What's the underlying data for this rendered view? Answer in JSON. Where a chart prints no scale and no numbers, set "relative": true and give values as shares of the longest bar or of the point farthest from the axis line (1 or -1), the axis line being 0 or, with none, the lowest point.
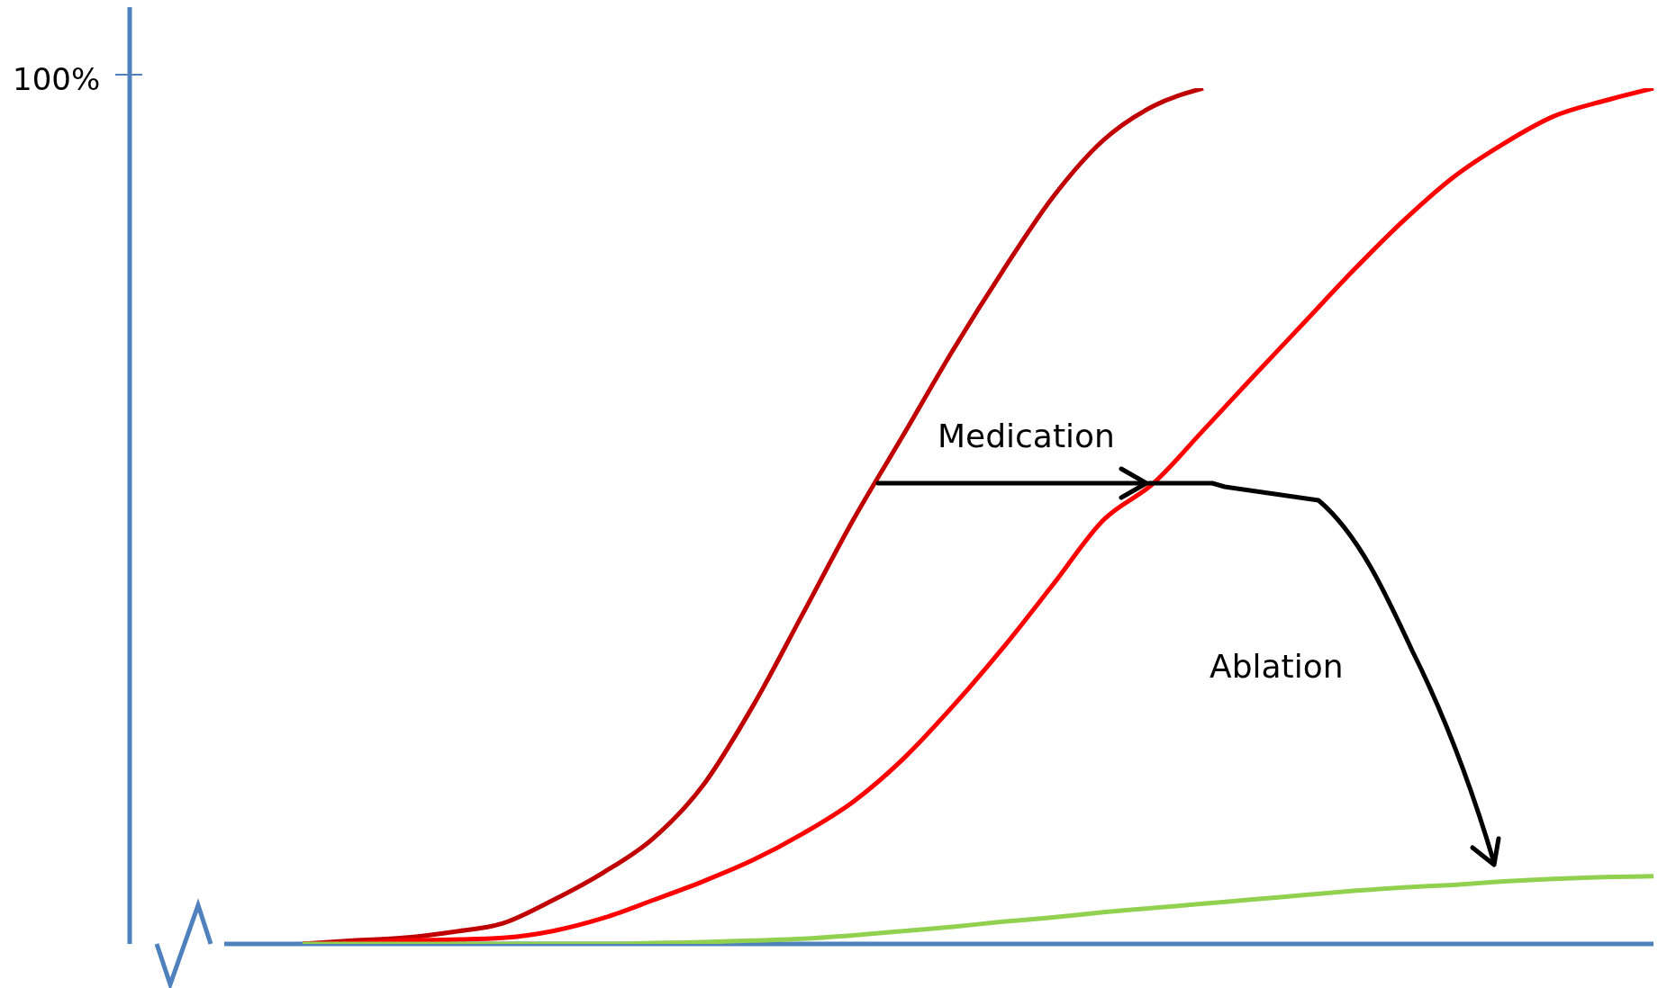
{
  "chart_data": {
    "type": "line",
    "relative": true,
    "categories": [
      null,
      null,
      null,
      null,
      null,
      null,
      null,
      null,
      null,
      null,
      null,
      null,
      null,
      null,
      null,
      null,
      null,
      null,
      null,
      null,
      null,
      null,
      null,
      null,
      null,
      null,
      null,
      null
    ],
    "series": [
      {
        "color": "#c00000",
        "values": [
          0,
          0.004,
          0.007,
          0.014,
          0.024,
          0.051,
          0.083,
          0.123,
          0.185,
          0.278,
          0.386,
          0.495,
          0.594,
          0.694,
          0.787,
          0.873,
          0.939,
          0.979,
          1,
          null,
          null,
          null,
          null,
          null,
          null,
          null,
          null,
          null
        ]
      },
      {
        "color": "#ff0000",
        "values": [
          0,
          0.001,
          0.004,
          0.005,
          0.007,
          0.015,
          0.03,
          0.051,
          0.073,
          0.098,
          0.129,
          0.166,
          0.216,
          0.278,
          0.346,
          0.42,
          0.495,
          0.538,
          0.6,
          0.663,
          0.725,
          0.787,
          0.845,
          0.896,
          0.935,
          0.967,
          0.985,
          1
        ]
      },
      {
        "color": "#92d050",
        "values": [
          0,
          0,
          0,
          0,
          0,
          0,
          0,
          0.001,
          0.002,
          0.004,
          0.006,
          0.01,
          0.015,
          0.02,
          0.026,
          0.031,
          0.037,
          0.042,
          0.047,
          0.052,
          0.057,
          0.062,
          0.066,
          0.069,
          0.073,
          0.076,
          0.078,
          0.079
        ]
      }
    ],
    "annotations": [
      "100%",
      "Medication",
      "Ablation"
    ]
  }
}
